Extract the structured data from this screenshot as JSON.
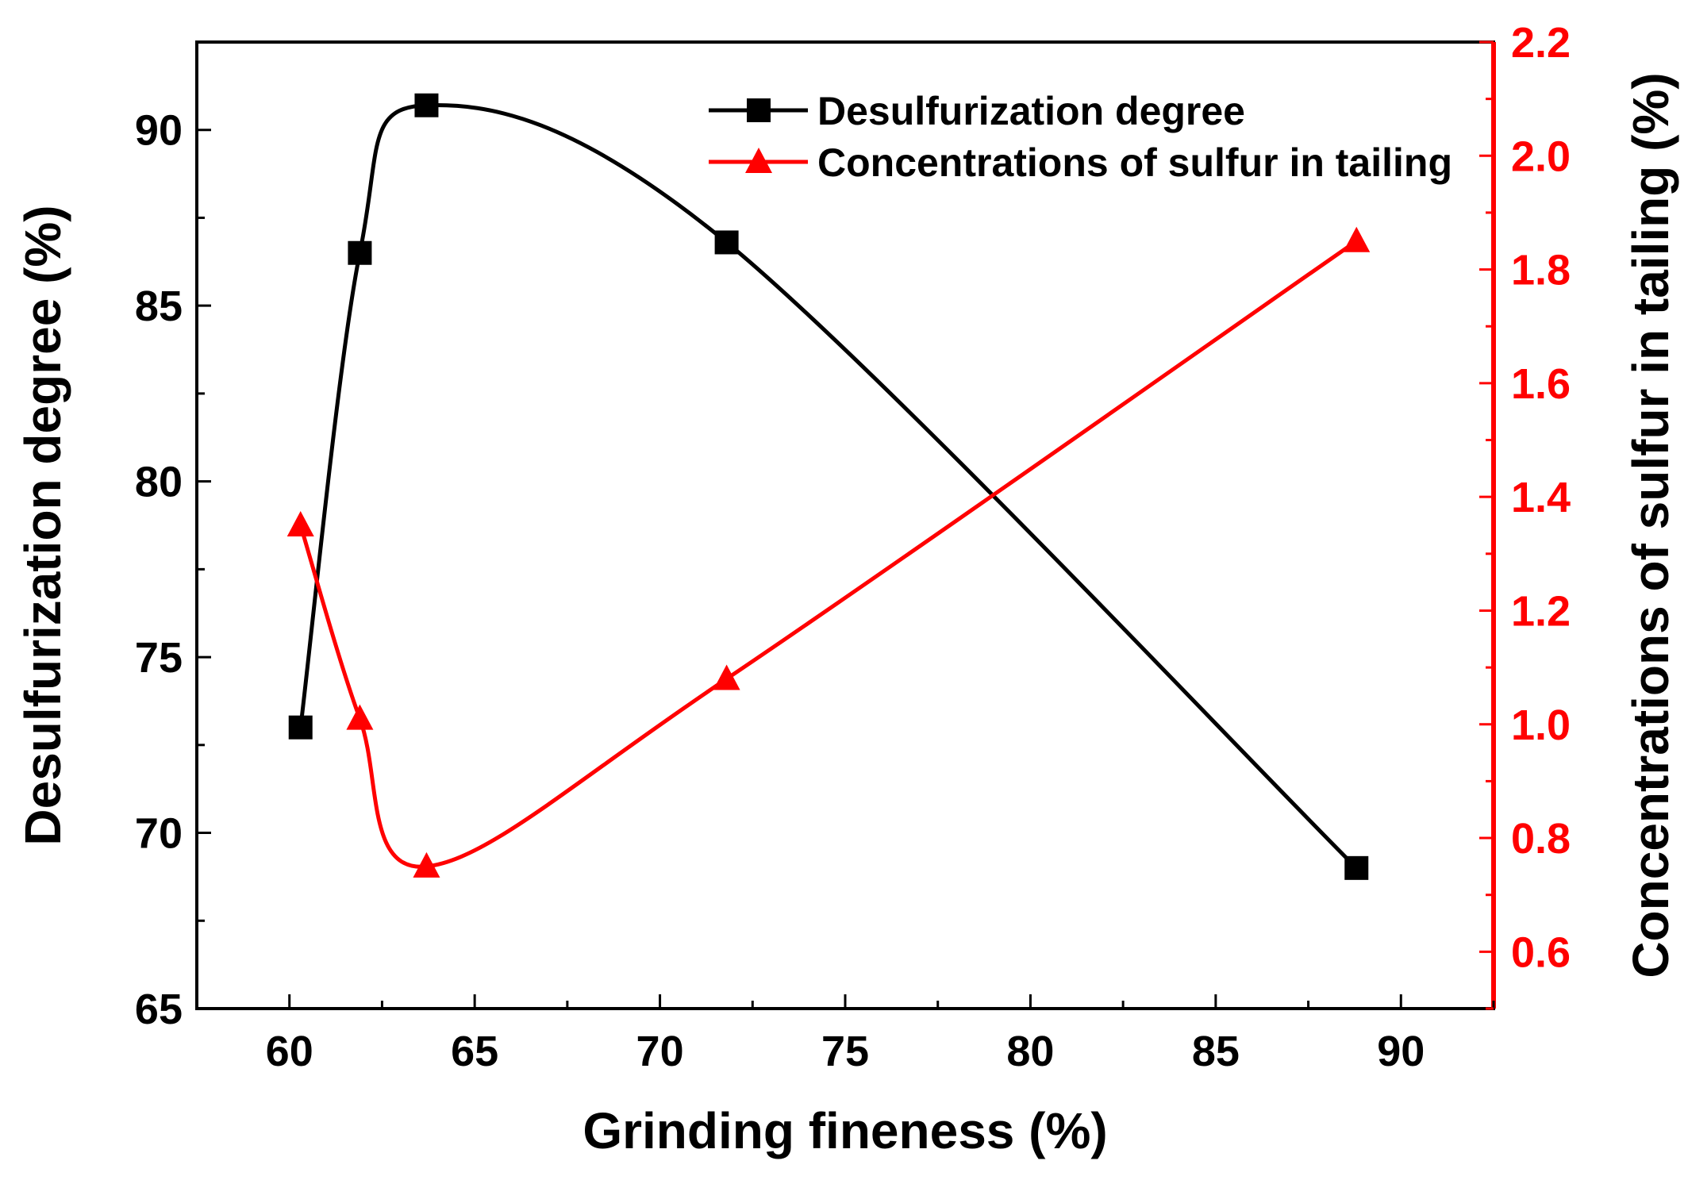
{
  "chart_data": {
    "type": "line",
    "title": "",
    "xlabel": "Grinding fineness (%)",
    "ylabel_left": "Desulfurization degree (%)",
    "ylabel_right": "Concentrations of sulfur in tailing (%)",
    "xlim": [
      57.5,
      92.5
    ],
    "ylim_left": [
      65,
      92.5
    ],
    "ylim_right": [
      0.5,
      2.2
    ],
    "x_ticks": [
      60,
      65,
      70,
      75,
      80,
      85,
      90
    ],
    "x_tick_labels": [
      "60",
      "65",
      "70",
      "75",
      "80",
      "85",
      "90"
    ],
    "y_left_ticks": [
      65,
      70,
      75,
      80,
      85,
      90
    ],
    "y_left_tick_labels": [
      "65",
      "70",
      "75",
      "80",
      "85",
      "90"
    ],
    "y_right_ticks": [
      0.6,
      0.8,
      1.0,
      1.2,
      1.4,
      1.6,
      1.8,
      2.0,
      2.2
    ],
    "y_right_tick_labels": [
      "0.6",
      "0.8",
      "1.0",
      "1.2",
      "1.4",
      "1.6",
      "1.8",
      "2.0",
      "2.2"
    ],
    "grid": false,
    "legend_position": "top-center",
    "series": [
      {
        "name": "Desulfurization degree",
        "axis": "left",
        "color": "#000000",
        "marker": "square",
        "x": [
          60.3,
          61.9,
          63.7,
          71.8,
          88.8
        ],
        "values": [
          73.0,
          86.5,
          90.7,
          86.8,
          69.0
        ]
      },
      {
        "name": "Concentrations of sulfur in tailing",
        "axis": "right",
        "color": "#ff0000",
        "marker": "triangle",
        "x": [
          60.3,
          61.9,
          63.7,
          71.8,
          88.8
        ],
        "values": [
          1.35,
          1.01,
          0.75,
          1.08,
          1.85
        ]
      }
    ]
  }
}
